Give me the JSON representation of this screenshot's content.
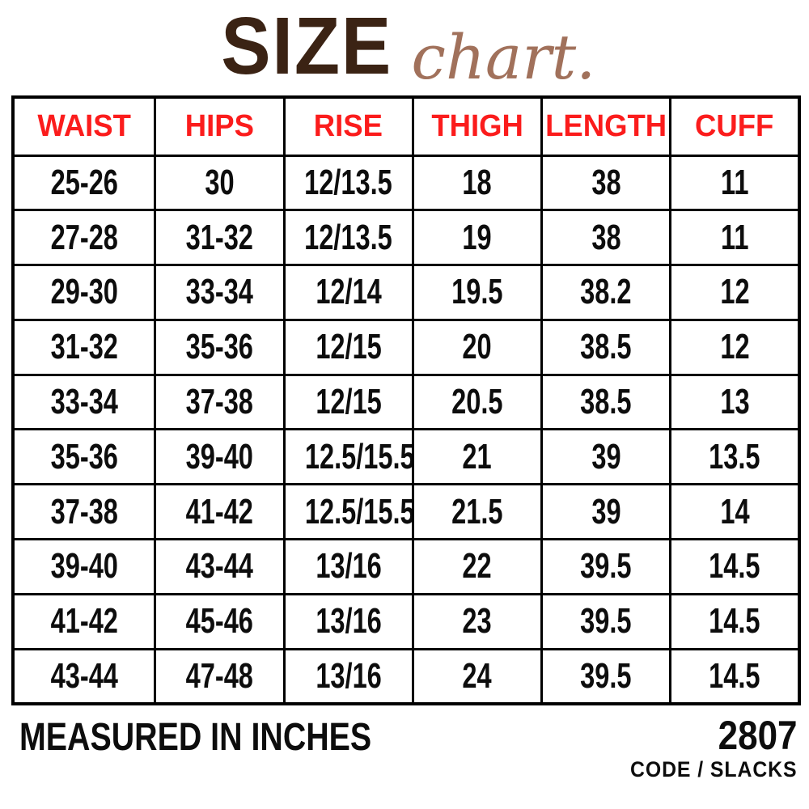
{
  "title": {
    "main": "SIZE",
    "script": "chart."
  },
  "colors": {
    "title_main": "#3B2314",
    "title_script": "#A1715B",
    "header_text": "#FB1C1C",
    "body_text": "#0D0D0D",
    "border": "#000000",
    "background": "#FFFFFF"
  },
  "chart_data": {
    "type": "table",
    "title": "SIZE chart.",
    "columns": [
      "WAIST",
      "HIPS",
      "RISE",
      "THIGH",
      "LENGTH",
      "CUFF"
    ],
    "rows": [
      [
        "25-26",
        "30",
        "12/13.5",
        "18",
        "38",
        "11"
      ],
      [
        "27-28",
        "31-32",
        "12/13.5",
        "19",
        "38",
        "11"
      ],
      [
        "29-30",
        "33-34",
        "12/14",
        "19.5",
        "38.2",
        "12"
      ],
      [
        "31-32",
        "35-36",
        "12/15",
        "20",
        "38.5",
        "12"
      ],
      [
        "33-34",
        "37-38",
        "12/15",
        "20.5",
        "38.5",
        "13"
      ],
      [
        "35-36",
        "39-40",
        "12.5/15.5",
        "21",
        "39",
        "13.5"
      ],
      [
        "37-38",
        "41-42",
        "12.5/15.5",
        "21.5",
        "39",
        "14"
      ],
      [
        "39-40",
        "43-44",
        "13/16",
        "22",
        "39.5",
        "14.5"
      ],
      [
        "41-42",
        "45-46",
        "13/16",
        "23",
        "39.5",
        "14.5"
      ],
      [
        "43-44",
        "47-48",
        "13/16",
        "24",
        "39.5",
        "14.5"
      ]
    ],
    "units_note": "MEASURED IN INCHES"
  },
  "footer": {
    "note": "MEASURED IN INCHES",
    "code": "2807",
    "code_label": "CODE / SLACKS"
  }
}
